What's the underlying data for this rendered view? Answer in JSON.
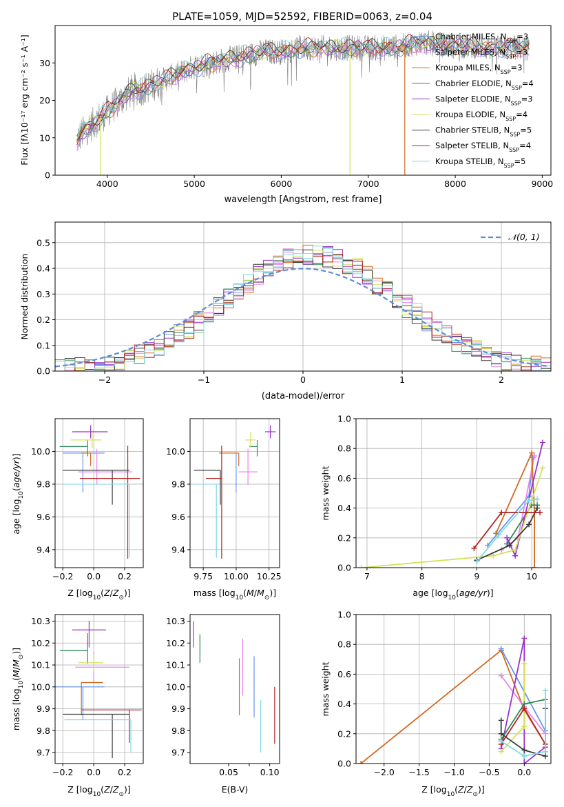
{
  "figure_title": "PLATE=1059, MJD=52592, FIBERID=0063, z=0.04",
  "colors": {
    "Chabrier MILES": "#6495ed",
    "Salpeter MILES": "#ee82ee",
    "Kroupa MILES": "#d2691e",
    "Chabrier ELODIE": "#2e8b57",
    "Salpeter ELODIE": "#9932cc",
    "Kroupa ELODIE": "#d4e157",
    "Chabrier STELIB": "#3a3a3a",
    "Salpeter STELIB": "#b22222",
    "Kroupa STELIB": "#80d8e6",
    "data": "#808080",
    "normal": "#5b8bd9"
  },
  "chart_data": [
    {
      "id": "spectrum",
      "type": "line",
      "title": "PLATE=1059, MJD=52592, FIBERID=0063, z=0.04",
      "xlabel": "wavelength [Angstrom, rest frame]",
      "ylabel": "Flux [fλ10⁻¹⁷ erg cm⁻² s⁻¹ A⁻¹]",
      "xlim": [
        3400,
        9100
      ],
      "ylim": [
        0,
        40
      ],
      "xticks": [
        4000,
        5000,
        6000,
        7000,
        8000,
        9000
      ],
      "yticks": [
        0,
        10,
        20,
        30
      ],
      "grid": false,
      "legend_position": "top-right",
      "data_envelope": {
        "x": [
          3650,
          3700,
          3800,
          3900,
          4000,
          4100,
          4200,
          4300,
          4400,
          4500,
          4600,
          4800,
          5000,
          5200,
          5400,
          5600,
          5800,
          6000,
          6200,
          6400,
          6600,
          6800,
          7000,
          7200,
          7400,
          7600,
          7800,
          8000,
          8200,
          8400,
          8600,
          8850
        ],
        "y": [
          9,
          11,
          13,
          15,
          17,
          19,
          21,
          23,
          23,
          24,
          25,
          27,
          29,
          30,
          31,
          32,
          33,
          33,
          34,
          34,
          34,
          34,
          34,
          34,
          34.5,
          35.5,
          35,
          34.5,
          34.5,
          34,
          34,
          34
        ]
      },
      "legend": [
        "Chabrier MILES, N_SSP=3",
        "Salpeter MILES, N_SSP=3",
        "Kroupa MILES, N_SSP=3",
        "Chabrier ELODIE, N_SSP=4",
        "Salpeter ELODIE, N_SSP=3",
        "Kroupa ELODIE, N_SSP=4",
        "Chabrier STELIB, N_SSP=5",
        "Salpeter STELIB, N_SSP=4",
        "Kroupa STELIB, N_SSP=5"
      ],
      "legend_main": [
        "Chabrier MILES, N",
        "Salpeter MILES, N",
        "Kroupa MILES, N",
        "Chabrier ELODIE, N",
        "Salpeter ELODIE, N",
        "Kroupa ELODIE, N",
        "Chabrier STELIB, N",
        "Salpeter STELIB, N",
        "Kroupa STELIB, N"
      ],
      "legend_sub": "SSP",
      "legend_eq": [
        "=3",
        "=3",
        "=3",
        "=4",
        "=3",
        "=4",
        "=5",
        "=4",
        "=5"
      ],
      "drops": [
        {
          "model": "Kroupa ELODIE",
          "x": 3920
        },
        {
          "model": "Kroupa ELODIE",
          "x": 6790
        },
        {
          "model": "Kroupa MILES",
          "x": 7420
        }
      ]
    },
    {
      "id": "residuals",
      "type": "histogram",
      "xlabel": "(data-model)/error",
      "ylabel": "Normed distribution",
      "xlim": [
        -2.5,
        2.5
      ],
      "ylim": [
        0,
        0.58
      ],
      "xticks": [
        -2,
        -1,
        0,
        1,
        2
      ],
      "yticks": [
        0.0,
        0.1,
        0.2,
        0.3,
        0.4,
        0.5
      ],
      "grid": true,
      "legend": [
        "𝒩(0, 1)"
      ],
      "legend_position": "top-right",
      "bin_width": 0.1,
      "reference_curve": "standard normal density N(0,1)"
    },
    {
      "id": "age-vs-Z",
      "type": "errorbar",
      "xlabel": "Z [log10(Z/Z⊙)]",
      "ylabel": "age  [log10(age/yr)]",
      "xlim": [
        -0.25,
        0.32
      ],
      "ylim": [
        9.29,
        10.2
      ],
      "xticks": [
        -0.2,
        0.0,
        0.2
      ],
      "yticks": [
        9.4,
        9.6,
        9.8,
        10.0
      ],
      "grid": true,
      "points": [
        {
          "model": "Chabrier MILES",
          "x": -0.07,
          "xerr": [
            0.13,
            0.14
          ],
          "y": 9.99,
          "yerr": [
            0.24,
            0.0
          ]
        },
        {
          "model": "Salpeter MILES",
          "x": 0.02,
          "xerr": [
            0.12,
            0.23
          ],
          "y": 9.875,
          "yerr": [
            0.08,
            0.14
          ]
        },
        {
          "model": "Kroupa MILES",
          "x": -0.02,
          "xerr": [
            0.06,
            0.0
          ],
          "y": 9.99,
          "yerr": [
            0.08,
            0.0
          ]
        },
        {
          "model": "Chabrier ELODIE",
          "x": -0.04,
          "xerr": [
            0.18,
            0.0
          ],
          "y": 10.03,
          "yerr": [
            0.06,
            0.04
          ]
        },
        {
          "model": "Salpeter ELODIE",
          "x": -0.02,
          "xerr": [
            0.12,
            0.11
          ],
          "y": 10.12,
          "yerr": [
            0.04,
            0.04
          ]
        },
        {
          "model": "Kroupa ELODIE",
          "x": -0.01,
          "xerr": [
            0.14,
            0.06
          ],
          "y": 10.07,
          "yerr": [
            0.05,
            0.05
          ]
        },
        {
          "model": "Chabrier STELIB",
          "x": 0.12,
          "xerr": [
            0.32,
            0.11
          ],
          "y": 9.885,
          "yerr": [
            0.21,
            0.0
          ]
        },
        {
          "model": "Salpeter STELIB",
          "x": 0.22,
          "xerr": [
            0.31,
            0.08
          ],
          "y": 9.835,
          "yerr": [
            0.49,
            0.2
          ]
        },
        {
          "model": "Kroupa STELIB",
          "x": 0.23,
          "xerr": [
            0.43,
            0.0
          ],
          "y": 9.8,
          "yerr": [
            0.45,
            0.0
          ]
        }
      ]
    },
    {
      "id": "age-vs-mass",
      "type": "errorbar",
      "xlabel": "mass [log10(M/M⊙)]",
      "xlim": [
        9.65,
        10.33
      ],
      "ylim": [
        9.29,
        10.2
      ],
      "xticks": [
        9.75,
        10.0,
        10.25
      ],
      "yticks": [
        9.4,
        9.6,
        9.8,
        10.0
      ],
      "grid": true,
      "points": [
        {
          "model": "Chabrier MILES",
          "x": 10.0,
          "xerr": [
            0.0,
            0.0
          ],
          "y": 9.99,
          "yerr": [
            0.24,
            0.0
          ]
        },
        {
          "model": "Salpeter MILES",
          "x": 10.09,
          "xerr": [
            0.07,
            0.07
          ],
          "y": 9.875,
          "yerr": [
            0.08,
            0.14
          ]
        },
        {
          "model": "Kroupa MILES",
          "x": 10.02,
          "xerr": [
            0.15,
            0.0
          ],
          "y": 9.99,
          "yerr": [
            0.08,
            0.0
          ]
        },
        {
          "model": "Chabrier ELODIE",
          "x": 10.16,
          "xerr": [
            0.06,
            0.0
          ],
          "y": 10.03,
          "yerr": [
            0.06,
            0.04
          ]
        },
        {
          "model": "Salpeter ELODIE",
          "x": 10.26,
          "xerr": [
            0.04,
            0.04
          ],
          "y": 10.12,
          "yerr": [
            0.04,
            0.04
          ]
        },
        {
          "model": "Kroupa ELODIE",
          "x": 10.11,
          "xerr": [
            0.04,
            0.04
          ],
          "y": 10.07,
          "yerr": [
            0.05,
            0.05
          ]
        },
        {
          "model": "Chabrier STELIB",
          "x": 9.88,
          "xerr": [
            0.2,
            0.0
          ],
          "y": 9.885,
          "yerr": [
            0.21,
            0.0
          ]
        },
        {
          "model": "Salpeter STELIB",
          "x": 9.89,
          "xerr": [
            0.12,
            0.0
          ],
          "y": 9.835,
          "yerr": [
            0.49,
            0.2
          ]
        },
        {
          "model": "Kroupa STELIB",
          "x": 9.85,
          "xerr": [
            0.15,
            0.0
          ],
          "y": 9.8,
          "yerr": [
            0.45,
            0.0
          ]
        }
      ]
    },
    {
      "id": "weight-vs-age",
      "type": "line",
      "xlabel": "age  [log10(age/yr)]",
      "ylabel": "mass weight",
      "xlim": [
        6.8,
        10.35
      ],
      "ylim": [
        0,
        1.0
      ],
      "xticks": [
        7,
        8,
        9,
        10
      ],
      "yticks": [
        0.0,
        0.2,
        0.4,
        0.6,
        0.8,
        1.0
      ],
      "grid": true,
      "series": [
        {
          "model": "Chabrier MILES",
          "x": [
            9.2,
            9.95,
            10.02
          ],
          "y": [
            0.15,
            0.48,
            0.74
          ]
        },
        {
          "model": "Salpeter MILES",
          "x": [
            9.45,
            9.75,
            10.05
          ],
          "y": [
            0.12,
            0.2,
            0.75
          ]
        },
        {
          "model": "Kroupa MILES",
          "x": [
            9.35,
            10.0,
            10.05,
            10.05
          ],
          "y": [
            0.23,
            0.77,
            0.37,
            0.0
          ]
        },
        {
          "model": "Chabrier ELODIE",
          "x": [
            9.55,
            10.0,
            10.1
          ],
          "y": [
            0.16,
            0.42,
            0.42
          ]
        },
        {
          "model": "Salpeter ELODIE",
          "x": [
            9.55,
            9.7,
            10.2
          ],
          "y": [
            0.2,
            0.08,
            0.84
          ]
        },
        {
          "model": "Kroupa ELODIE",
          "x": [
            6.9,
            9.3,
            9.7,
            10.2
          ],
          "y": [
            0.0,
            0.08,
            0.12,
            0.67
          ]
        },
        {
          "model": "Chabrier STELIB",
          "x": [
            9.0,
            9.6,
            9.95,
            10.1
          ],
          "y": [
            0.05,
            0.15,
            0.29,
            0.4
          ]
        },
        {
          "model": "Salpeter STELIB",
          "x": [
            8.95,
            9.45,
            10.15
          ],
          "y": [
            0.13,
            0.37,
            0.37
          ]
        },
        {
          "model": "Kroupa STELIB",
          "x": [
            9.0,
            9.4,
            9.95,
            10.1
          ],
          "y": [
            0.04,
            0.22,
            0.45,
            0.46
          ]
        }
      ]
    },
    {
      "id": "mass-vs-Z",
      "type": "errorbar",
      "xlabel": "Z [log10(Z/Z⊙)]",
      "ylabel": "mass [log10(M/M⊙)]",
      "xlim": [
        -0.25,
        0.32
      ],
      "ylim": [
        9.65,
        10.33
      ],
      "xticks": [
        -0.2,
        0.0,
        0.2
      ],
      "yticks": [
        9.7,
        9.8,
        9.9,
        10.0,
        10.1,
        10.2,
        10.3
      ],
      "grid": true,
      "points": [
        {
          "model": "Chabrier MILES",
          "x": -0.07,
          "xerr": [
            0.18,
            0.14
          ],
          "y": 10.0,
          "yerr": [
            0.15,
            0.0
          ]
        },
        {
          "model": "Salpeter MILES",
          "x": 0.0,
          "xerr": [
            0.12,
            0.23
          ],
          "y": 10.09,
          "yerr": [
            0.07,
            0.07
          ]
        },
        {
          "model": "Kroupa MILES",
          "x": -0.08,
          "xerr": [
            0.0,
            0.14
          ],
          "y": 10.02,
          "yerr": [
            0.15,
            0.0
          ]
        },
        {
          "model": "Chabrier ELODIE",
          "x": -0.04,
          "xerr": [
            0.18,
            0.0
          ],
          "y": 10.165,
          "yerr": [
            0.06,
            0.08
          ]
        },
        {
          "model": "Salpeter ELODIE",
          "x": -0.03,
          "xerr": [
            0.11,
            0.11
          ],
          "y": 10.26,
          "yerr": [
            0.08,
            0.04
          ]
        },
        {
          "model": "Kroupa ELODIE",
          "x": 0.0,
          "xerr": [
            0.1,
            0.06
          ],
          "y": 10.11,
          "yerr": [
            0.04,
            0.04
          ]
        },
        {
          "model": "Chabrier STELIB",
          "x": 0.12,
          "xerr": [
            0.32,
            0.11
          ],
          "y": 9.875,
          "yerr": [
            0.2,
            0.0
          ]
        },
        {
          "model": "Salpeter STELIB",
          "x": 0.23,
          "xerr": [
            0.31,
            0.08
          ],
          "y": 9.895,
          "yerr": [
            0.15,
            0.0
          ]
        },
        {
          "model": "Kroupa STELIB",
          "x": 0.24,
          "xerr": [
            0.43,
            0.0
          ],
          "y": 9.85,
          "yerr": [
            0.15,
            0.0
          ]
        }
      ]
    },
    {
      "id": "mass-vs-EBV",
      "type": "errorbar",
      "xlabel": "E(B-V)",
      "xlim": [
        0.003,
        0.112
      ],
      "ylim": [
        9.65,
        10.33
      ],
      "xticks": [
        0.05,
        0.075,
        0.1
      ],
      "xticklabels": [
        "0.05",
        "",
        "0.10"
      ],
      "yticks": [
        9.7,
        9.8,
        9.9,
        10.0,
        10.1,
        10.2,
        10.3
      ],
      "grid": false,
      "points": [
        {
          "model": "Salpeter ELODIE",
          "x": 0.007,
          "y": 10.24,
          "yerr": [
            0.06,
            0.06
          ]
        },
        {
          "model": "Kroupa ELODIE",
          "x": 0.012,
          "y": 10.06,
          "yerr": [
            0.0,
            0.0
          ]
        },
        {
          "model": "Chabrier ELODIE",
          "x": 0.015,
          "y": 10.175,
          "yerr": [
            0.065,
            0.065
          ]
        },
        {
          "model": "Kroupa MILES",
          "x": 0.063,
          "y": 10.0,
          "yerr": [
            0.13,
            0.13
          ]
        },
        {
          "model": "Salpeter MILES",
          "x": 0.067,
          "y": 10.09,
          "yerr": [
            0.13,
            0.13
          ]
        },
        {
          "model": "Chabrier MILES",
          "x": 0.081,
          "y": 10.0,
          "yerr": [
            0.14,
            0.14
          ]
        },
        {
          "model": "Chabrier STELIB",
          "x": 0.086,
          "y": 9.77,
          "yerr": [
            0.0,
            0.0
          ]
        },
        {
          "model": "Kroupa STELIB",
          "x": 0.089,
          "y": 9.82,
          "yerr": [
            0.12,
            0.12
          ]
        },
        {
          "model": "Salpeter STELIB",
          "x": 0.106,
          "y": 9.87,
          "yerr": [
            0.13,
            0.13
          ]
        }
      ]
    },
    {
      "id": "weight-vs-Z",
      "type": "line",
      "xlabel": "Z [log10(Z/Z⊙)]",
      "ylabel": "mass weight",
      "xlim": [
        -2.4,
        0.38
      ],
      "ylim": [
        0,
        1.0
      ],
      "xticks": [
        -2.0,
        -1.5,
        -1.0,
        -0.5,
        0.0
      ],
      "yticks": [
        0.0,
        0.2,
        0.4,
        0.6,
        0.8,
        1.0
      ],
      "grid": true,
      "series": [
        {
          "model": "Kroupa MILES",
          "x": [
            -2.33,
            -0.33,
            0.0,
            0.3
          ],
          "y": [
            0.0,
            0.76,
            0.36,
            0.13
          ]
        },
        {
          "model": "Chabrier MILES",
          "x": [
            -0.33,
            0.3
          ],
          "y": [
            0.77,
            0.22
          ]
        },
        {
          "model": "Salpeter MILES",
          "x": [
            -0.33,
            0.0,
            0.3
          ],
          "y": [
            0.59,
            0.38,
            0.2
          ]
        },
        {
          "model": "Salpeter ELODIE",
          "x": [
            -0.33,
            0.0,
            0.0,
            0.3
          ],
          "y": [
            0.1,
            0.84,
            0.0,
            0.11
          ]
        },
        {
          "model": "Kroupa ELODIE",
          "x": [
            -0.33,
            0.0,
            0.0
          ],
          "y": [
            0.08,
            0.25,
            0.67
          ]
        },
        {
          "model": "Chabrier ELODIE",
          "x": [
            -0.33,
            0.0,
            0.3
          ],
          "y": [
            0.16,
            0.4,
            0.43
          ]
        },
        {
          "model": "Chabrier STELIB",
          "x": [
            -0.33,
            -0.33,
            0.0,
            0.3,
            0.3
          ],
          "y": [
            0.29,
            0.2,
            0.09,
            0.05,
            0.37
          ]
        },
        {
          "model": "Salpeter STELIB",
          "x": [
            -0.33,
            0.0,
            0.3
          ],
          "y": [
            0.13,
            0.37,
            0.13
          ]
        },
        {
          "model": "Kroupa STELIB",
          "x": [
            -0.33,
            0.0,
            0.3,
            0.3
          ],
          "y": [
            0.15,
            0.05,
            0.08,
            0.49
          ]
        }
      ]
    }
  ]
}
